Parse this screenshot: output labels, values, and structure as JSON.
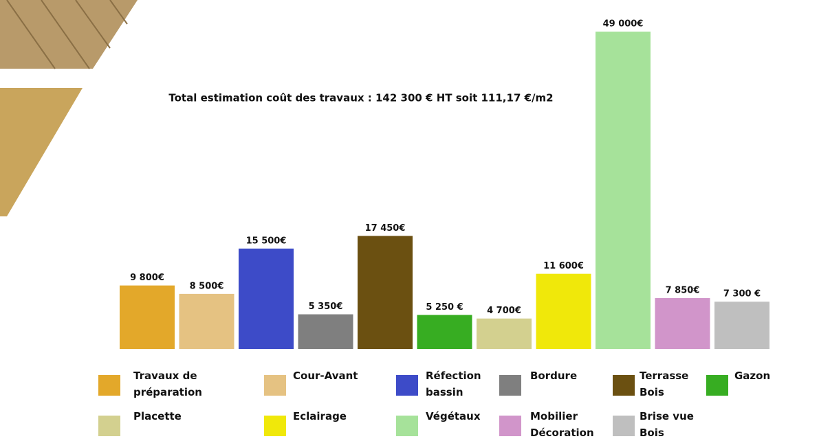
{
  "chart_data": {
    "type": "bar",
    "title": "Total estimation coût des travaux : 142 300 € HT soit 111,17 €/m2",
    "categories": [
      "Travaux de préparation",
      "Cour-Avant",
      "Réfection bassin",
      "Bordure",
      "Terrasse Bois",
      "Gazon",
      "Placette",
      "Eclairage",
      "Végétaux",
      "Mobilier Décoration",
      "Brise vue Bois"
    ],
    "values": [
      9800,
      8500,
      15500,
      5350,
      17450,
      5250,
      4700,
      11600,
      49000,
      7850,
      7300
    ],
    "value_labels": [
      "9 800€",
      "8 500€",
      "15 500€",
      "5 350€",
      "17 450€",
      "5 250 €",
      "4 700€",
      "11 600€",
      "49 000€",
      "7 850€",
      "7 300 €"
    ],
    "colors": [
      "#e3a82a",
      "#e5c282",
      "#3d4bc8",
      "#7f7f7f",
      "#6b5011",
      "#37ad22",
      "#d3d08f",
      "#f0e80a",
      "#a6e29a",
      "#d195ca",
      "#bfbfbf"
    ]
  }
}
